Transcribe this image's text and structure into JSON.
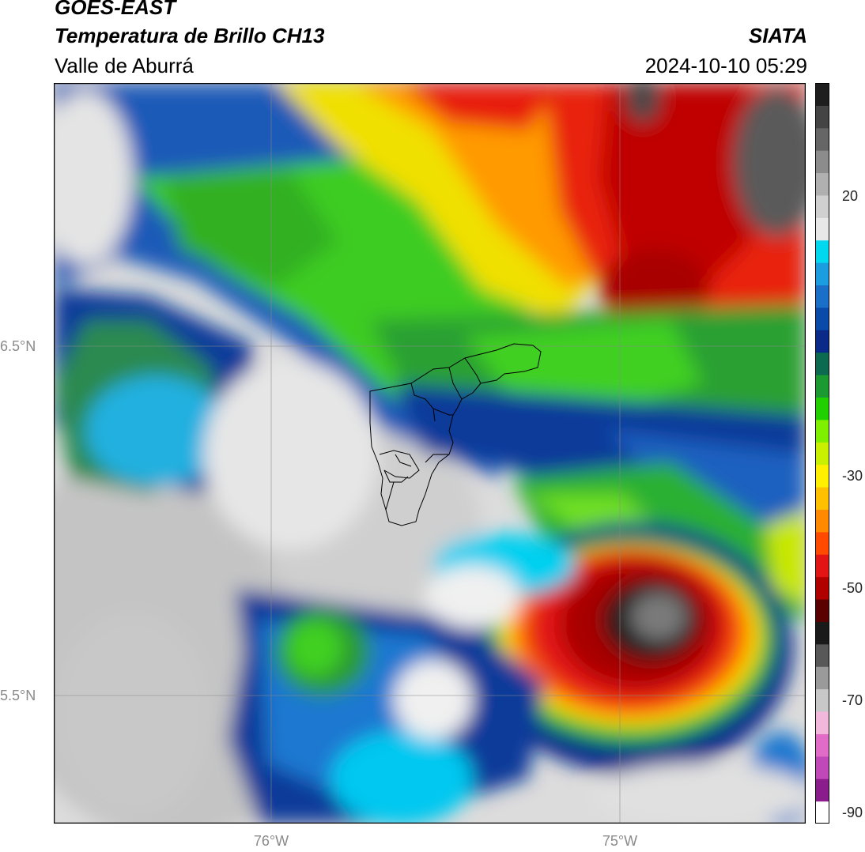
{
  "header": {
    "satellite": "GOES-EAST",
    "product": "Temperatura de Brillo CH13",
    "region": "Valle de Aburrá",
    "brand": "SIATA",
    "datetime": "2024-10-10 05:29"
  },
  "axes": {
    "lat_labels": [
      "6.5°N",
      "5.5°N"
    ],
    "lon_labels": [
      "76°W",
      "75°W"
    ]
  },
  "colorbar": {
    "tick_labels": [
      "20",
      "-30",
      "-50",
      "-70",
      "-90"
    ],
    "palette": [
      "#ffffff",
      "#8b1c8b",
      "#c048b8",
      "#e06cc8",
      "#f2b8dc",
      "#c8c8c8",
      "#9a9a9a",
      "#585858",
      "#1a1a1a",
      "#5a0000",
      "#b00000",
      "#e21414",
      "#ff4a00",
      "#ff8a00",
      "#ffc000",
      "#fff000",
      "#c8f000",
      "#7ef000",
      "#20d000",
      "#1a9a30",
      "#0c6a50",
      "#0a2a8a",
      "#0a4aa8",
      "#1a70c8",
      "#1a9ee0",
      "#00d8f0",
      "#e8e8e8",
      "#d0d0d0",
      "#b0b0b0",
      "#8c8c8c",
      "#666666",
      "#444444",
      "#1e1e1e"
    ]
  }
}
